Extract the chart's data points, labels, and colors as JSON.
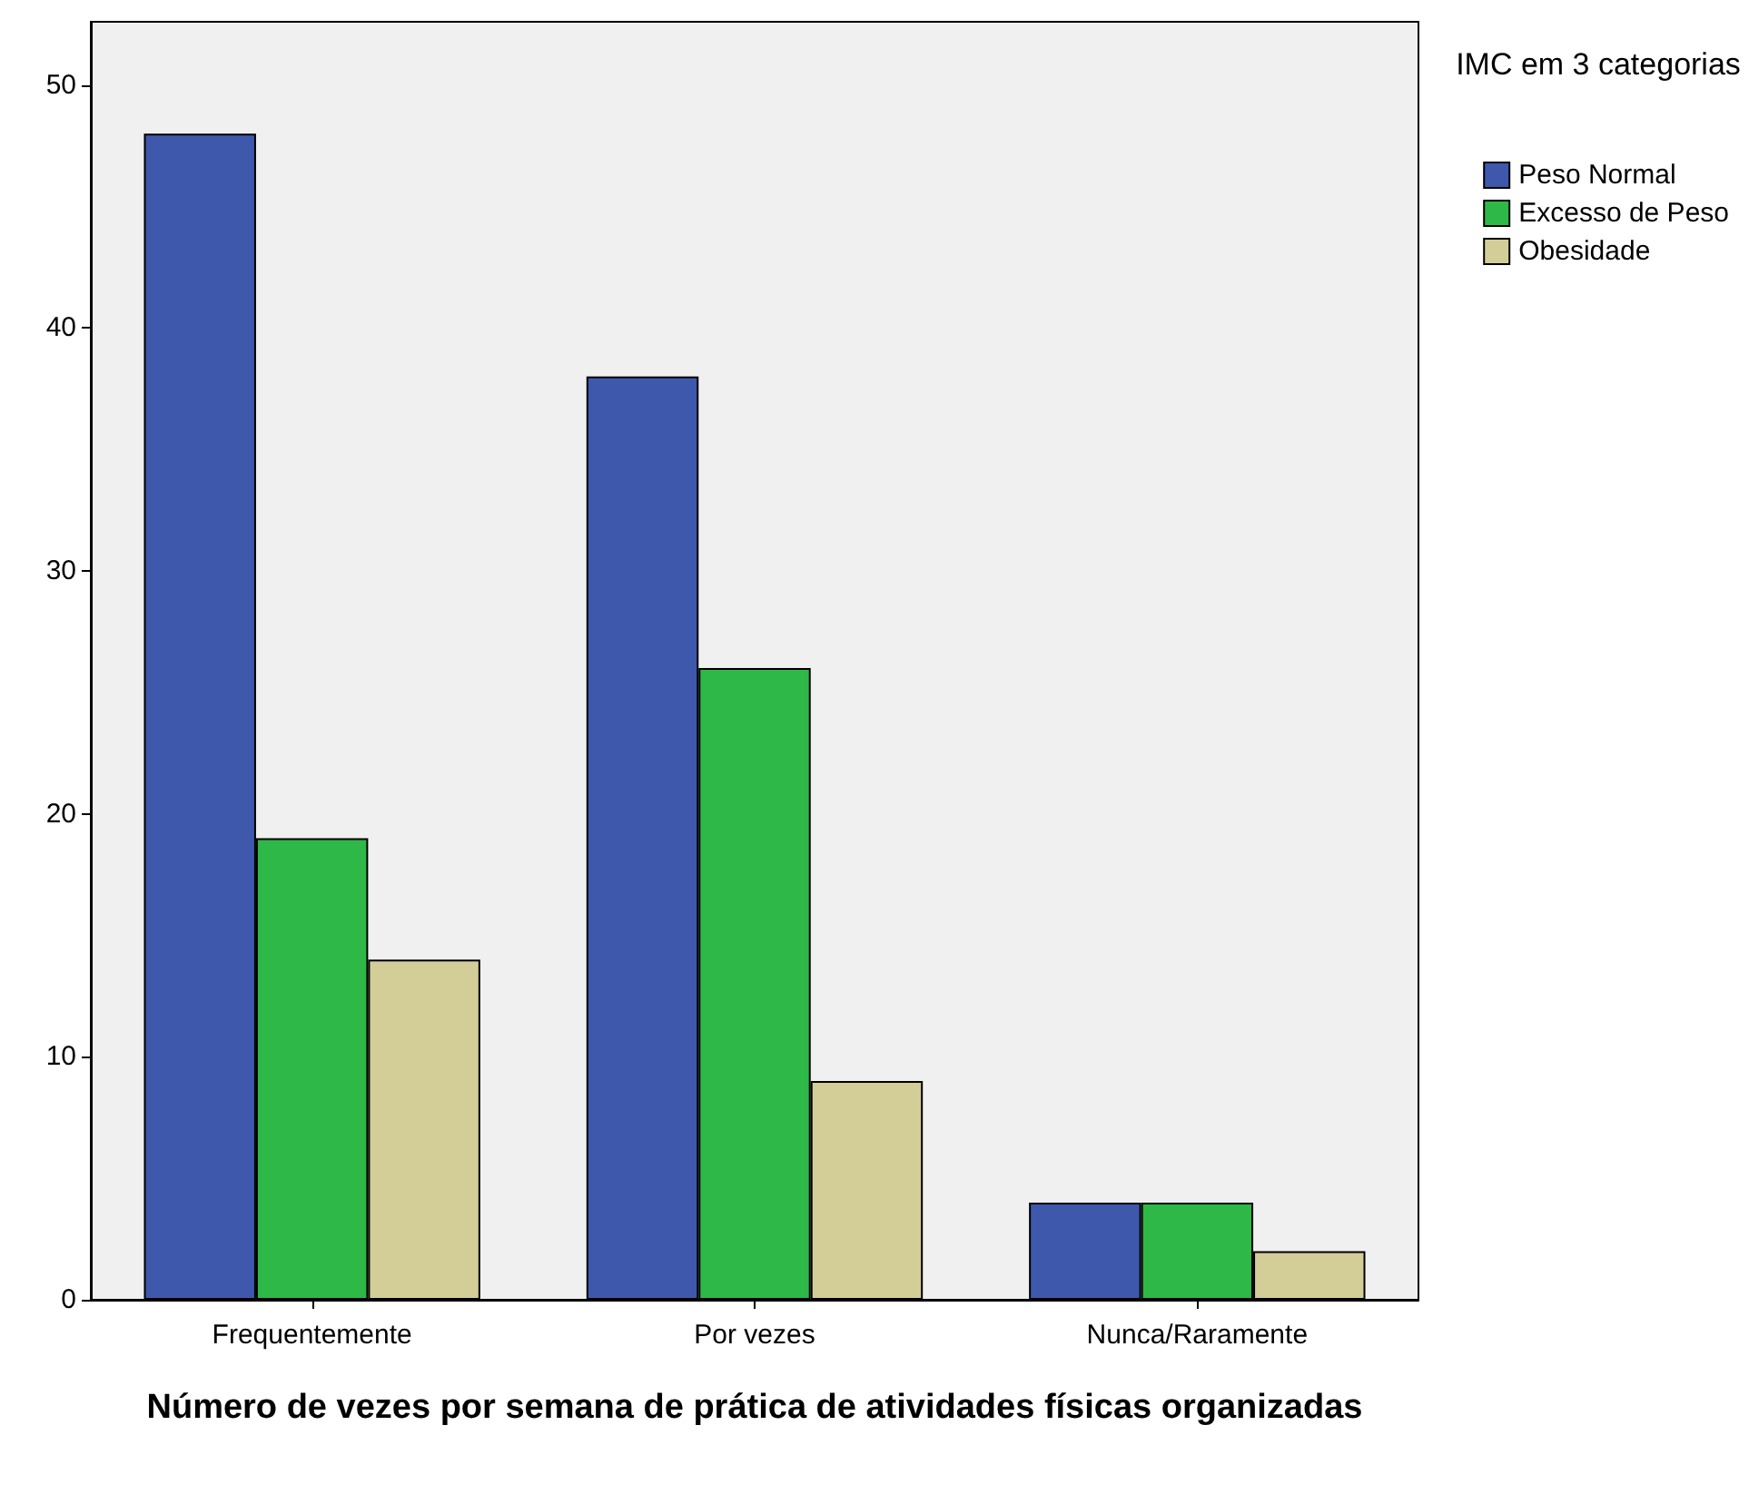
{
  "chart_data": {
    "type": "bar",
    "xlabel": "Número de vezes por semana de prática de atividades físicas organizadas",
    "legend_title": "IMC em 3 categorias",
    "categories": [
      "Frequentemente",
      "Por vezes",
      "Nunca/Raramente"
    ],
    "series": [
      {
        "name": "Peso Normal",
        "color": "#3e58ac",
        "values": [
          48,
          38,
          4
        ]
      },
      {
        "name": "Excesso de Peso",
        "color": "#2eb848",
        "values": [
          19,
          26,
          4
        ]
      },
      {
        "name": "Obesidade",
        "color": "#d3ce97",
        "values": [
          14,
          9,
          2
        ]
      }
    ],
    "ylim": [
      0,
      52.6
    ],
    "yticks": [
      0,
      10,
      20,
      30,
      40,
      50
    ],
    "grid": false,
    "legend": "top right"
  }
}
